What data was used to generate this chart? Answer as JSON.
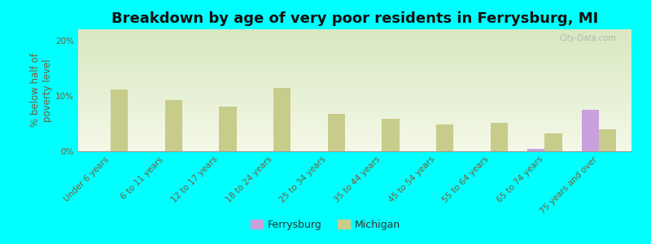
{
  "title": "Breakdown by age of very poor residents in Ferrysburg, MI",
  "ylabel": "% below half of\npoverty level",
  "categories": [
    "Under 6 years",
    "6 to 11 years",
    "12 to 17 years",
    "18 to 24 years",
    "25 to 34 years",
    "35 to 44 years",
    "45 to 54 years",
    "55 to 64 years",
    "65 to 74 years",
    "75 years and over"
  ],
  "ferrysburg_values": [
    0,
    0,
    0,
    0,
    0,
    0,
    0,
    0,
    0.4,
    7.5
  ],
  "michigan_values": [
    11.2,
    9.2,
    8.0,
    11.4,
    6.8,
    5.8,
    4.8,
    5.2,
    3.2,
    4.0
  ],
  "ferrysburg_color": "#c9a0dc",
  "michigan_color": "#c8cc8a",
  "background_color": "#00ffff",
  "plot_bg_top": "#d8e8c0",
  "plot_bg_bottom": "#f4f8e8",
  "ylim": [
    0,
    22
  ],
  "yticks": [
    0,
    10,
    20
  ],
  "ytick_labels": [
    "0%",
    "10%",
    "20%"
  ],
  "title_fontsize": 13,
  "axis_label_fontsize": 8.5,
  "tick_fontsize": 7.5,
  "bar_width": 0.32,
  "watermark": "City-Data.com"
}
